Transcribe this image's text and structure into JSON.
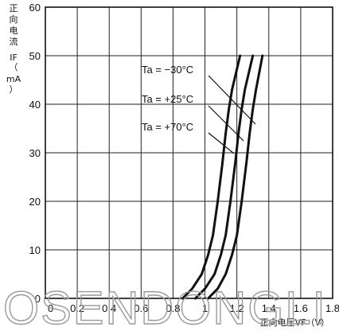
{
  "chart_data": {
    "type": "line",
    "xlabel": "正向电压VF（V）",
    "ylabel": [
      "正",
      "向",
      "电",
      "流",
      "IF",
      "（",
      "mA",
      "）"
    ],
    "xlim": [
      0,
      1.8
    ],
    "ylim": [
      0,
      60
    ],
    "x_ticks": [
      "0",
      "0.2",
      "0.4",
      "0.6",
      "0.8",
      "1",
      "1.2",
      "1.4",
      "1.6",
      "1.8"
    ],
    "y_ticks": [
      "0",
      "10",
      "20",
      "30",
      "40",
      "50",
      "60"
    ],
    "grid": true,
    "series": [
      {
        "name": "Ta = −30°C",
        "x": [
          1.02,
          1.08,
          1.13,
          1.17,
          1.2,
          1.23,
          1.26,
          1.28,
          1.3,
          1.32,
          1.36
        ],
        "y": [
          0,
          2,
          5,
          9,
          13,
          20,
          28,
          34,
          39,
          43,
          50
        ]
      },
      {
        "name": "Ta = +25°C",
        "x": [
          0.94,
          1.0,
          1.06,
          1.1,
          1.13,
          1.16,
          1.19,
          1.21,
          1.23,
          1.25,
          1.3
        ],
        "y": [
          0,
          2,
          5,
          9,
          13,
          20,
          28,
          34,
          39,
          43,
          50
        ]
      },
      {
        "name": "Ta = +70°C",
        "x": [
          0.86,
          0.92,
          0.98,
          1.02,
          1.05,
          1.08,
          1.11,
          1.13,
          1.15,
          1.17,
          1.22
        ],
        "y": [
          0,
          2,
          5,
          9,
          13,
          20,
          28,
          34,
          39,
          43,
          50
        ]
      }
    ],
    "annotations": [
      {
        "text": "Ta = −30°C",
        "series": 0
      },
      {
        "text": "Ta = +25°C",
        "series": 1
      },
      {
        "text": "Ta = +70°C",
        "series": 2
      }
    ]
  },
  "watermark": "OSENDONGLI"
}
